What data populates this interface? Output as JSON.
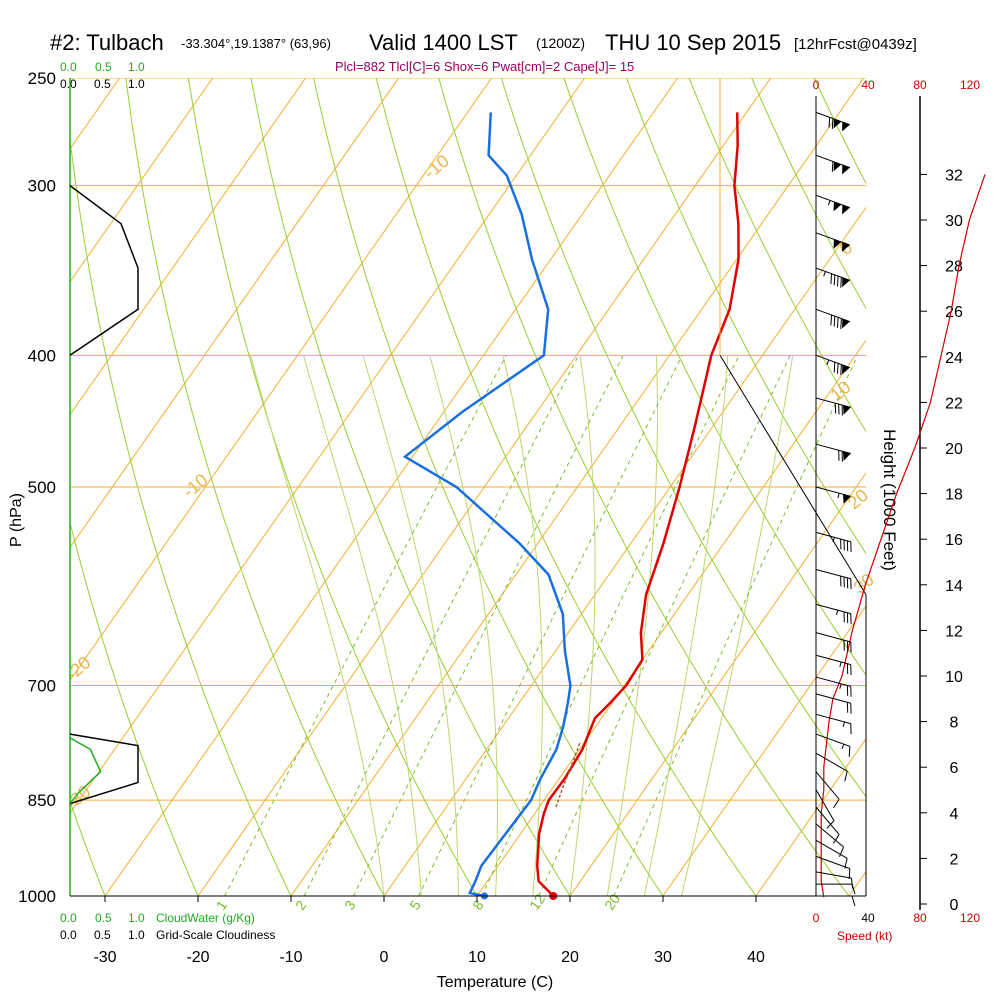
{
  "header": {
    "station": "#2: Tulbach",
    "coords": "-33.304°,19.1387° (63,96)",
    "valid": "Valid 1400 LST",
    "utc": "(1200Z)",
    "date": "THU 10 Sep 2015",
    "forecast": "[12hrFcst@0439z]",
    "indices": "Plcl=882 Tlcl[C]=6 Shox=6 Pwat[cm]=2 Cape[J]= 15"
  },
  "colors": {
    "isotherm": "#f0b030",
    "dry_adiabat": "#9acd32",
    "moist_adiabat": "#b9d96b",
    "mixing_ratio": "#7cbb2a",
    "temperature": "#e00000",
    "dewpoint": "#1a6fe0",
    "cloud_water": "#22aa22",
    "wind_speed": "#cc0000",
    "indices_text": "#990066"
  },
  "left_scales": {
    "cloud_water_ticks": [
      "0.0",
      "0.5",
      "1.0"
    ],
    "cloudiness_ticks": [
      "0.0",
      "0.5",
      "1.0"
    ],
    "cloud_water_label": "CloudWater (g/Kg)",
    "cloudiness_label": "Grid-Scale Cloudiness"
  },
  "chart_data": {
    "type": "skew-t",
    "title": "#2: Tulbach",
    "xlabel": "Temperature (C)",
    "ylabel": "P (hPa)",
    "x_ticks": [
      -30,
      -20,
      -10,
      0,
      10,
      20,
      30,
      40
    ],
    "xlim": [
      -34,
      46
    ],
    "pressure_ticks": [
      250,
      300,
      400,
      500,
      700,
      850,
      1000
    ],
    "plim": [
      1000,
      250
    ],
    "isotherm_labels": [
      {
        "t": 0,
        "text": "0"
      },
      {
        "t": 10,
        "text": "10"
      },
      {
        "t": 20,
        "text": "20"
      },
      {
        "t": 30,
        "text": "30"
      },
      {
        "t": -10,
        "text": "-10"
      },
      {
        "t": -20,
        "text": "-20"
      },
      {
        "t": -30,
        "text": "-30"
      },
      {
        "t": -10,
        "text": "-10"
      }
    ],
    "mixing_ratio_labels": [
      "1",
      "2",
      "3",
      "5",
      "8",
      "12",
      "20"
    ],
    "temperature": [
      {
        "p": 1000,
        "t": 18.2
      },
      {
        "p": 975,
        "t": 15.5
      },
      {
        "p": 950,
        "t": 14.2
      },
      {
        "p": 900,
        "t": 12.0
      },
      {
        "p": 870,
        "t": 11.0
      },
      {
        "p": 850,
        "t": 10.5
      },
      {
        "p": 820,
        "t": 10.6
      },
      {
        "p": 780,
        "t": 10.3
      },
      {
        "p": 740,
        "t": 9.3
      },
      {
        "p": 720,
        "t": 9.8
      },
      {
        "p": 700,
        "t": 10.2
      },
      {
        "p": 670,
        "t": 10.0
      },
      {
        "p": 640,
        "t": 7.8
      },
      {
        "p": 600,
        "t": 5.5
      },
      {
        "p": 550,
        "t": 3.5
      },
      {
        "p": 500,
        "t": 1.0
      },
      {
        "p": 450,
        "t": -2.0
      },
      {
        "p": 400,
        "t": -5.5
      },
      {
        "p": 370,
        "t": -7.0
      },
      {
        "p": 340,
        "t": -9.8
      },
      {
        "p": 320,
        "t": -12.5
      },
      {
        "p": 300,
        "t": -15.8
      },
      {
        "p": 280,
        "t": -18.5
      },
      {
        "p": 265,
        "t": -21.0
      }
    ],
    "dewpoint": [
      {
        "p": 1000,
        "t": 10.8
      },
      {
        "p": 995,
        "t": 9.0
      },
      {
        "p": 975,
        "t": 8.7
      },
      {
        "p": 950,
        "t": 8.2
      },
      {
        "p": 900,
        "t": 8.4
      },
      {
        "p": 850,
        "t": 8.6
      },
      {
        "p": 820,
        "t": 8.0
      },
      {
        "p": 780,
        "t": 7.5
      },
      {
        "p": 750,
        "t": 6.5
      },
      {
        "p": 720,
        "t": 5.2
      },
      {
        "p": 700,
        "t": 4.2
      },
      {
        "p": 660,
        "t": 1.0
      },
      {
        "p": 620,
        "t": -2.0
      },
      {
        "p": 580,
        "t": -6.5
      },
      {
        "p": 550,
        "t": -12.0
      },
      {
        "p": 500,
        "t": -23.0
      },
      {
        "p": 475,
        "t": -30.8
      },
      {
        "p": 440,
        "t": -28.0
      },
      {
        "p": 400,
        "t": -23.5
      },
      {
        "p": 370,
        "t": -26.5
      },
      {
        "p": 340,
        "t": -32.0
      },
      {
        "p": 315,
        "t": -36.5
      },
      {
        "p": 295,
        "t": -41.0
      },
      {
        "p": 285,
        "t": -44.5
      },
      {
        "p": 265,
        "t": -47.5
      }
    ],
    "parcel_trace": [
      {
        "p": 860,
        "t": 11.8
      },
      {
        "p": 830,
        "t": 11.0
      },
      {
        "p": 800,
        "t": 10.3
      },
      {
        "p": 770,
        "t": 9.5
      }
    ],
    "surface_temperature": 18.2,
    "surface_dewpoint": 10.8,
    "cloudiness_profile": [
      {
        "p": 300,
        "v": 0.0
      },
      {
        "p": 320,
        "v": 0.75
      },
      {
        "p": 345,
        "v": 1.0
      },
      {
        "p": 370,
        "v": 1.0
      },
      {
        "p": 400,
        "v": 0.0
      },
      {
        "p": 760,
        "v": 0.0
      },
      {
        "p": 775,
        "v": 1.0
      },
      {
        "p": 825,
        "v": 1.0
      },
      {
        "p": 855,
        "v": 0.0
      }
    ],
    "cloud_water_profile": [
      {
        "p": 765,
        "v": 0.0
      },
      {
        "p": 780,
        "v": 0.3
      },
      {
        "p": 810,
        "v": 0.45
      },
      {
        "p": 840,
        "v": 0.12
      },
      {
        "p": 855,
        "v": 0.0
      }
    ],
    "wind_speed_scale": {
      "ticks": [
        0,
        40,
        80,
        120
      ],
      "label": "Speed (kt)"
    },
    "height_scale": {
      "label": "Height (1000 Feet)",
      "ticks": [
        0,
        2,
        4,
        6,
        8,
        10,
        12,
        14,
        16,
        18,
        20,
        22,
        24,
        26,
        28,
        30,
        32
      ]
    },
    "wind_speed_profile": [
      {
        "h": 0.3,
        "s": 6
      },
      {
        "h": 1.0,
        "s": 4
      },
      {
        "h": 2.0,
        "s": 4
      },
      {
        "h": 4.0,
        "s": 4
      },
      {
        "h": 5.0,
        "s": 6
      },
      {
        "h": 6.0,
        "s": 6
      },
      {
        "h": 7.0,
        "s": 8
      },
      {
        "h": 8.0,
        "s": 10
      },
      {
        "h": 9.0,
        "s": 13
      },
      {
        "h": 10.0,
        "s": 20
      },
      {
        "h": 12.0,
        "s": 28
      },
      {
        "h": 14.0,
        "s": 38
      },
      {
        "h": 16.0,
        "s": 50
      },
      {
        "h": 18.0,
        "s": 62
      },
      {
        "h": 20.0,
        "s": 76
      },
      {
        "h": 22.0,
        "s": 88
      },
      {
        "h": 24.0,
        "s": 96
      },
      {
        "h": 26.0,
        "s": 104
      },
      {
        "h": 28.0,
        "s": 110
      },
      {
        "h": 30.0,
        "s": 118
      },
      {
        "h": 32.0,
        "s": 130
      }
    ],
    "wind_barbs": [
      {
        "p": 265,
        "dir": 290,
        "spd": 120
      },
      {
        "p": 285,
        "dir": 290,
        "spd": 110
      },
      {
        "p": 305,
        "dir": 290,
        "spd": 105
      },
      {
        "p": 325,
        "dir": 290,
        "spd": 100
      },
      {
        "p": 345,
        "dir": 290,
        "spd": 95
      },
      {
        "p": 370,
        "dir": 290,
        "spd": 90
      },
      {
        "p": 400,
        "dir": 290,
        "spd": 85
      },
      {
        "p": 430,
        "dir": 285,
        "spd": 80
      },
      {
        "p": 465,
        "dir": 285,
        "spd": 70
      },
      {
        "p": 500,
        "dir": 285,
        "spd": 55
      },
      {
        "p": 540,
        "dir": 285,
        "spd": 45
      },
      {
        "p": 575,
        "dir": 285,
        "spd": 40
      },
      {
        "p": 610,
        "dir": 285,
        "spd": 35
      },
      {
        "p": 640,
        "dir": 285,
        "spd": 30
      },
      {
        "p": 665,
        "dir": 285,
        "spd": 25
      },
      {
        "p": 690,
        "dir": 285,
        "spd": 25
      },
      {
        "p": 710,
        "dir": 285,
        "spd": 20
      },
      {
        "p": 735,
        "dir": 285,
        "spd": 15
      },
      {
        "p": 760,
        "dir": 290,
        "spd": 15
      },
      {
        "p": 785,
        "dir": 300,
        "spd": 10
      },
      {
        "p": 810,
        "dir": 320,
        "spd": 10
      },
      {
        "p": 835,
        "dir": 330,
        "spd": 10
      },
      {
        "p": 860,
        "dir": 320,
        "spd": 10
      },
      {
        "p": 885,
        "dir": 310,
        "spd": 10
      },
      {
        "p": 910,
        "dir": 300,
        "spd": 10
      },
      {
        "p": 935,
        "dir": 290,
        "spd": 10
      },
      {
        "p": 960,
        "dir": 280,
        "spd": 10
      },
      {
        "p": 980,
        "dir": 270,
        "spd": 10
      },
      {
        "p": 1000,
        "dir": 270,
        "spd": 10
      }
    ]
  }
}
